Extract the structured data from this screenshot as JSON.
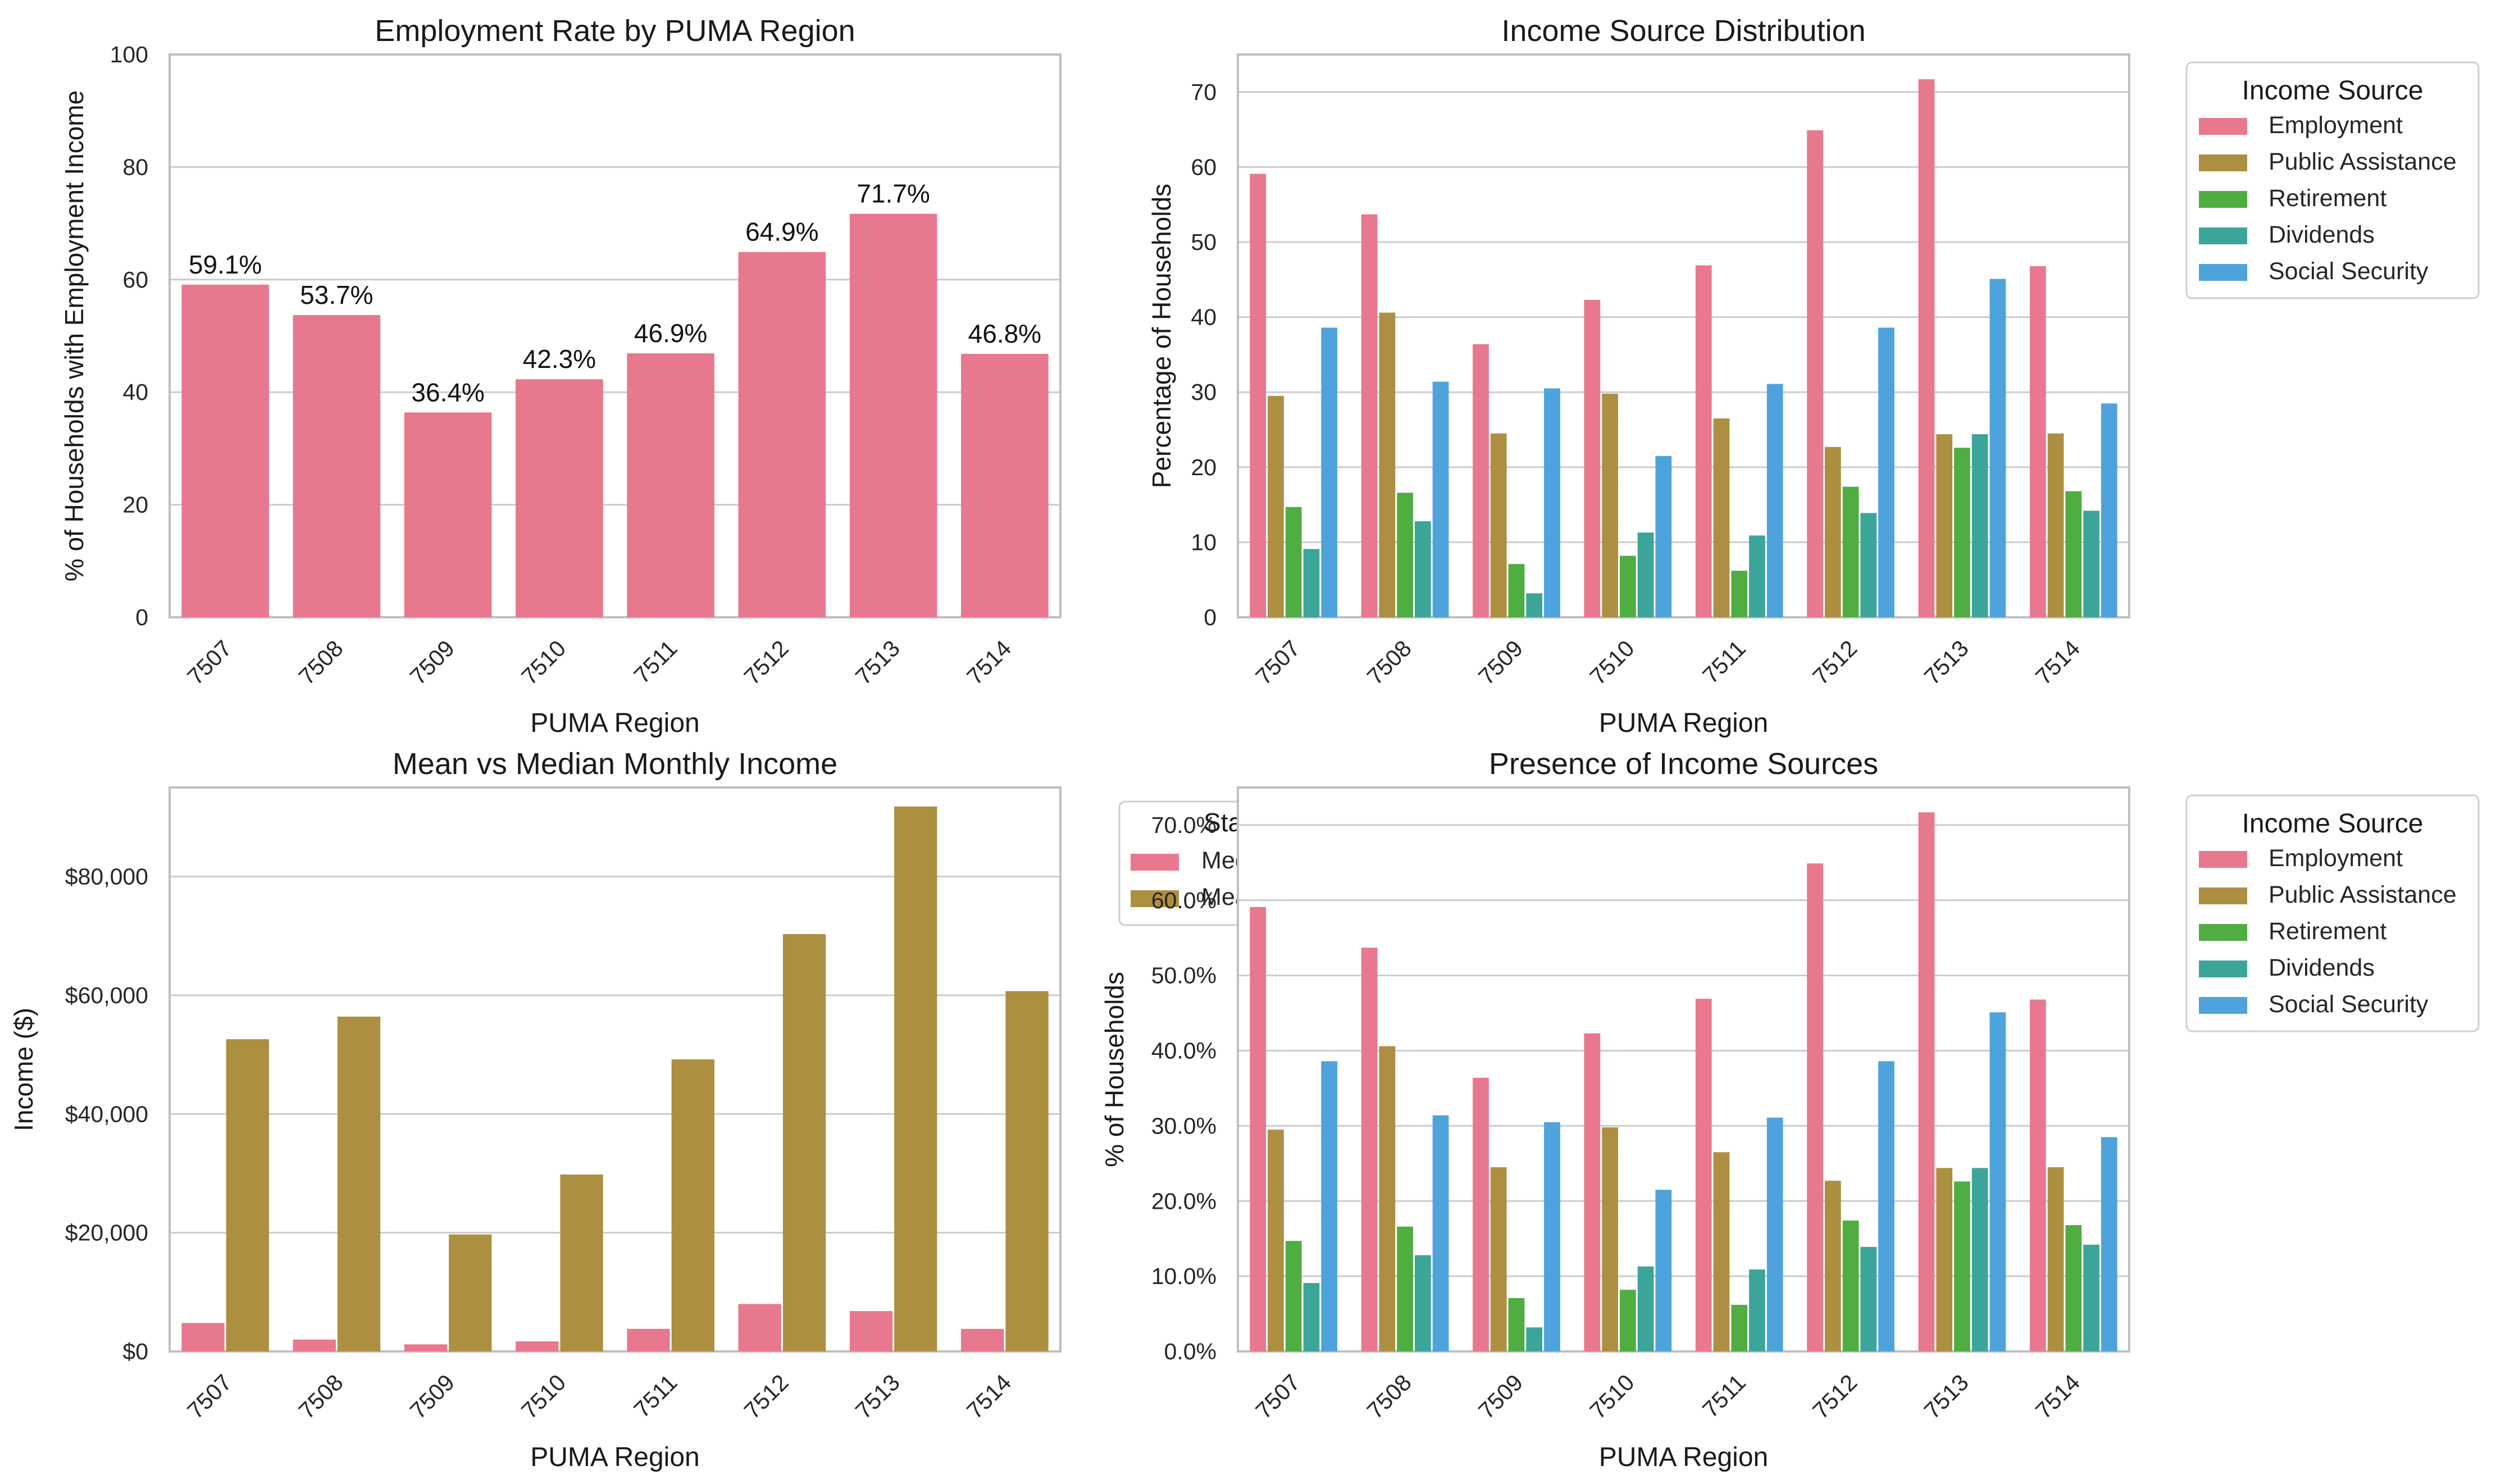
{
  "colors": {
    "employment": "#E8788E",
    "public_assistance": "#AD8F41",
    "retirement": "#4FAD42",
    "dividends": "#3CA59A",
    "social_security": "#4EA3DC",
    "median": "#E8788E",
    "mean": "#AD8F41",
    "grid": "#cccccc",
    "axis": "#bfbfbf"
  },
  "chart_data": [
    {
      "type": "bar",
      "title": "Employment Rate by PUMA Region",
      "xlabel": "PUMA Region",
      "ylabel": "% of Households with Employment Income",
      "categories": [
        "7507",
        "7508",
        "7509",
        "7510",
        "7511",
        "7512",
        "7513",
        "7514"
      ],
      "values": [
        59.1,
        53.7,
        36.4,
        42.3,
        46.9,
        64.9,
        71.7,
        46.8
      ],
      "data_labels": [
        "59.1%",
        "53.7%",
        "36.4%",
        "42.3%",
        "46.9%",
        "64.9%",
        "71.7%",
        "46.8%"
      ],
      "ylim": [
        0,
        100
      ],
      "yticks": [
        0,
        20,
        40,
        60,
        80,
        100
      ],
      "ytick_labels": [
        "0",
        "20",
        "40",
        "60",
        "80",
        "100"
      ],
      "grid": true
    },
    {
      "type": "bar",
      "title": "Income Source Distribution",
      "xlabel": "PUMA Region",
      "ylabel": "Percentage of Households",
      "categories": [
        "7507",
        "7508",
        "7509",
        "7510",
        "7511",
        "7512",
        "7513",
        "7514"
      ],
      "ylim": [
        0,
        75
      ],
      "yticks": [
        0,
        10,
        20,
        30,
        40,
        50,
        60,
        70
      ],
      "ytick_labels": [
        "0",
        "10",
        "20",
        "30",
        "40",
        "50",
        "60",
        "70"
      ],
      "legend_title": "Income Source",
      "legend_position": "outside-right",
      "series": [
        {
          "name": "Employment",
          "color_key": "employment",
          "values": [
            59.1,
            53.7,
            36.4,
            42.3,
            46.9,
            64.9,
            71.7,
            46.8
          ]
        },
        {
          "name": "Public Assistance",
          "color_key": "public_assistance",
          "values": [
            29.5,
            40.6,
            24.5,
            29.8,
            26.5,
            22.7,
            24.4,
            24.5
          ]
        },
        {
          "name": "Retirement",
          "color_key": "retirement",
          "values": [
            14.7,
            16.6,
            7.1,
            8.2,
            6.2,
            17.4,
            22.6,
            16.8
          ]
        },
        {
          "name": "Dividends",
          "color_key": "dividends",
          "values": [
            9.1,
            12.8,
            3.2,
            11.3,
            10.9,
            13.9,
            24.4,
            14.2
          ]
        },
        {
          "name": "Social Security",
          "color_key": "social_security",
          "values": [
            38.6,
            31.4,
            30.5,
            21.5,
            31.1,
            38.6,
            45.1,
            28.5
          ]
        }
      ],
      "grid": true
    },
    {
      "type": "bar",
      "title": "Mean vs Median Monthly Income",
      "xlabel": "PUMA Region",
      "ylabel": "Income ($)",
      "categories": [
        "7507",
        "7508",
        "7509",
        "7510",
        "7511",
        "7512",
        "7513",
        "7514"
      ],
      "ylim": [
        0,
        95000
      ],
      "yticks": [
        0,
        20000,
        40000,
        60000,
        80000
      ],
      "ytick_labels": [
        "$0",
        "$20,000",
        "$40,000",
        "$60,000",
        "$80,000"
      ],
      "series": [
        {
          "name": "Median",
          "color_key": "median",
          "values": [
            4800,
            2000,
            1200,
            1700,
            3800,
            8000,
            6800,
            3800
          ]
        },
        {
          "name": "Mean",
          "color_key": "mean",
          "values": [
            52600,
            56400,
            19700,
            29800,
            49200,
            70300,
            91800,
            60700
          ]
        }
      ],
      "legend_title": "Statistic",
      "legend_visible_title": "Sta",
      "legend_visible_labels": [
        "Med",
        "Mea"
      ],
      "legend_position": "top-left, partially hidden behind the next panel",
      "grid": true
    },
    {
      "type": "bar",
      "title": "Presence of Income Sources",
      "xlabel": "PUMA Region",
      "ylabel": "% of Households",
      "categories": [
        "7507",
        "7508",
        "7509",
        "7510",
        "7511",
        "7512",
        "7513",
        "7514"
      ],
      "ylim": [
        0,
        75
      ],
      "yticks": [
        0,
        10,
        20,
        30,
        40,
        50,
        60,
        70
      ],
      "ytick_labels": [
        "0.0%",
        "10.0%",
        "20.0%",
        "30.0%",
        "40.0%",
        "50.0%",
        "60.0%",
        "70.0%"
      ],
      "legend_title": "Income Source",
      "legend_position": "outside-right",
      "series": [
        {
          "name": "Employment",
          "color_key": "employment",
          "values": [
            59.1,
            53.7,
            36.4,
            42.3,
            46.9,
            64.9,
            71.7,
            46.8
          ]
        },
        {
          "name": "Public Assistance",
          "color_key": "public_assistance",
          "values": [
            29.5,
            40.6,
            24.5,
            29.8,
            26.5,
            22.7,
            24.4,
            24.5
          ]
        },
        {
          "name": "Retirement",
          "color_key": "retirement",
          "values": [
            14.7,
            16.6,
            7.1,
            8.2,
            6.2,
            17.4,
            22.6,
            16.8
          ]
        },
        {
          "name": "Dividends",
          "color_key": "dividends",
          "values": [
            9.1,
            12.8,
            3.2,
            11.3,
            10.9,
            13.9,
            24.4,
            14.2
          ]
        },
        {
          "name": "Social Security",
          "color_key": "social_security",
          "values": [
            38.6,
            31.4,
            30.5,
            21.5,
            31.1,
            38.6,
            45.1,
            28.5
          ]
        }
      ],
      "grid": true
    }
  ]
}
